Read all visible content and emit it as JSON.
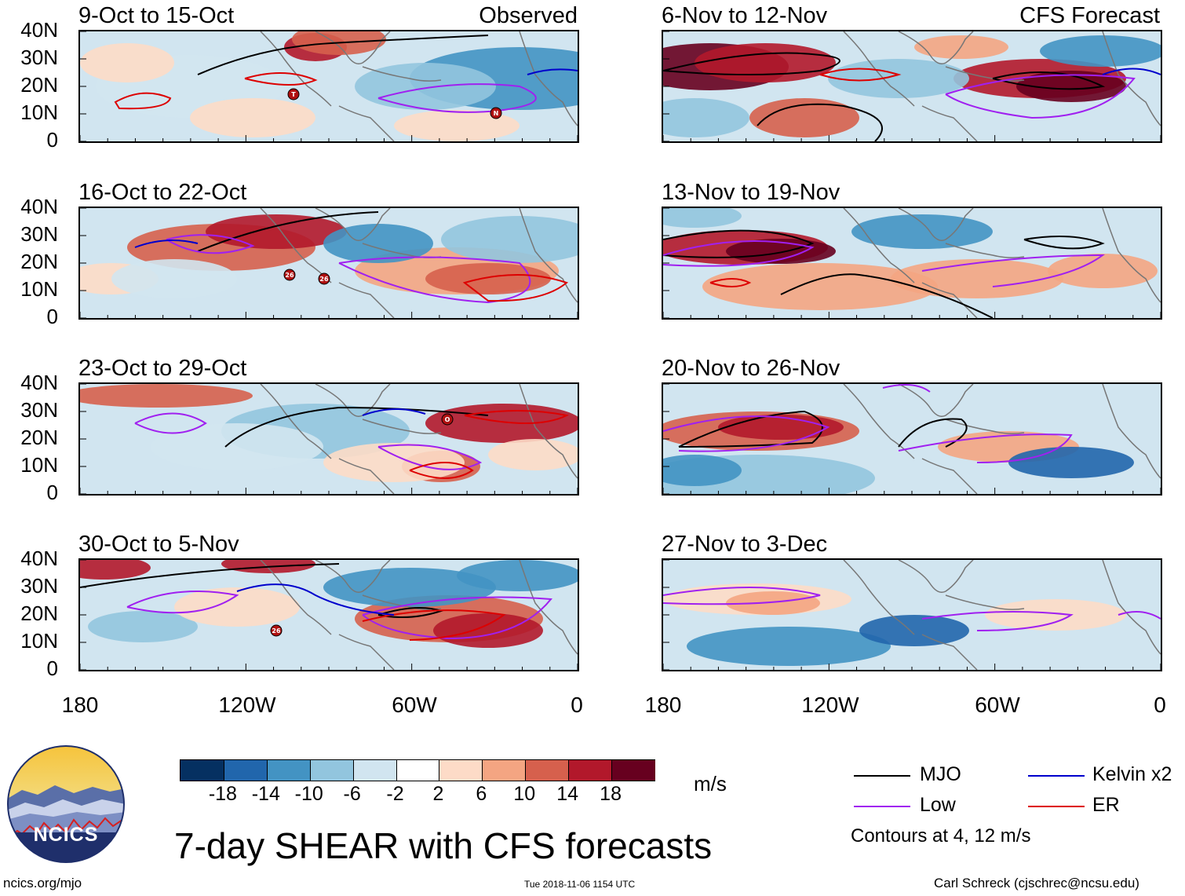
{
  "title": "7-day SHEAR with CFS forecasts",
  "site": "ncics.org/mjo",
  "timestamp": "Tue 2018-11-06 1154 UTC",
  "author": "Carl Schreck (cjschrec@ncsu.edu)",
  "logo_text": "NCICS",
  "units": "m/s",
  "contour_note": "Contours at 4, 12 m/s",
  "panels_left": [
    {
      "title": "9-Oct to 15-Oct",
      "tag": "Observed"
    },
    {
      "title": "16-Oct to 22-Oct",
      "tag": ""
    },
    {
      "title": "23-Oct to 29-Oct",
      "tag": ""
    },
    {
      "title": "30-Oct to 5-Nov",
      "tag": ""
    }
  ],
  "panels_right": [
    {
      "title": "6-Nov to 12-Nov",
      "tag": "CFS Forecast"
    },
    {
      "title": "13-Nov to 19-Nov",
      "tag": ""
    },
    {
      "title": "20-Nov to 26-Nov",
      "tag": ""
    },
    {
      "title": "27-Nov to 3-Dec",
      "tag": ""
    }
  ],
  "lat_labels": [
    "40N",
    "30N",
    "20N",
    "10N",
    "0"
  ],
  "lon_labels": [
    "180",
    "120W",
    "60W",
    "0"
  ],
  "colorbar": {
    "ticks": [
      "-18",
      "-14",
      "-10",
      "-6",
      "-2",
      "2",
      "6",
      "10",
      "14",
      "18"
    ],
    "colors": [
      "#053061",
      "#2166ac",
      "#4393c3",
      "#92c5de",
      "#d1e5f0",
      "#ffffff",
      "#fddbc7",
      "#f4a582",
      "#d6604d",
      "#b2182b",
      "#67001f"
    ]
  },
  "legend": [
    {
      "label": "MJO",
      "color": "#000000"
    },
    {
      "label": "Kelvin x2",
      "color": "#0000cc"
    },
    {
      "label": "Low",
      "color": "#a020f0"
    },
    {
      "label": "ER",
      "color": "#dd0000"
    }
  ],
  "storm_markers": {
    "p0": [
      "T",
      "N"
    ],
    "p1": [
      "26",
      "26"
    ],
    "p2": [
      "O"
    ],
    "p3": [
      "26"
    ]
  }
}
